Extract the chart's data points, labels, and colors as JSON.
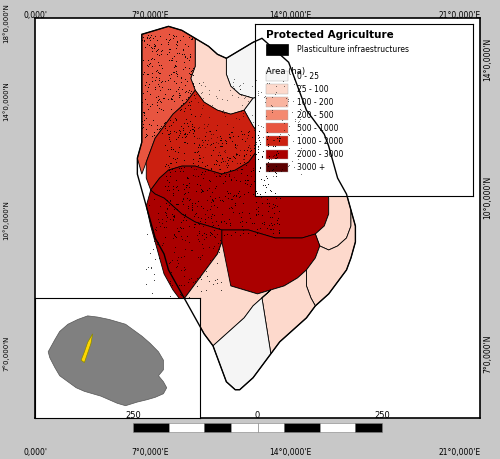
{
  "title": "Protected Agriculture",
  "legend_title": "Area (ha)",
  "legend_entries": [
    {
      "label": "0 - 25",
      "color": "#f5f5f5"
    },
    {
      "label": "25 - 100",
      "color": "#fdd9cc"
    },
    {
      "label": "100 - 200",
      "color": "#f9b4a0"
    },
    {
      "label": "200 - 500",
      "color": "#f48970"
    },
    {
      "label": "500 - 1000",
      "color": "#e85540"
    },
    {
      "label": "1000 - 2000",
      "color": "#cc2010"
    },
    {
      "label": "2000 - 3000",
      "color": "#aa0000"
    },
    {
      "label": "3000 +",
      "color": "#5c0000"
    }
  ],
  "plasticulture_label": "Plasticulture infraestructures",
  "background_color": "#ffffff",
  "outer_bg": "#c8c8c8",
  "figsize": [
    5.0,
    4.59
  ],
  "dpi": 100,
  "outer_border_color": "#000000",
  "inner_border_color": "#000000",
  "axis_tick_labels_x": [
    "0,000'",
    "7°0,000'E",
    "14°0,000'E",
    "21°0,000'E"
  ],
  "axis_tick_labels_y": [
    "14°0,000'N",
    "10°0,000'N",
    "7°0,000'N"
  ],
  "scale_labels": [
    "250",
    "0",
    "250"
  ]
}
